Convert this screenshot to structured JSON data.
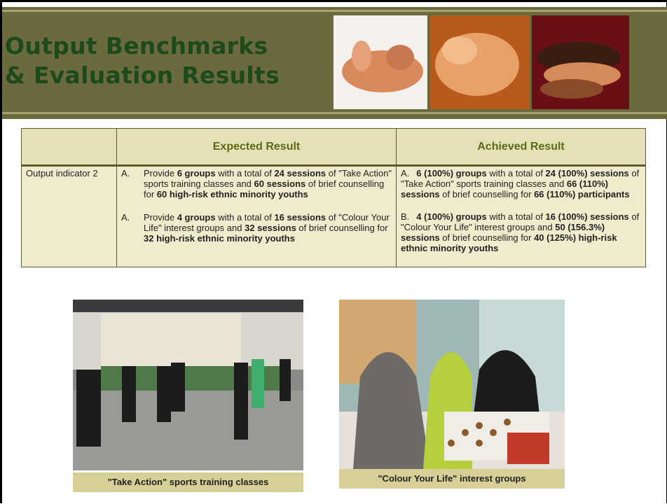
{
  "header": {
    "title_line1": "Output Benchmarks",
    "title_line2": "& Evaluation Results"
  },
  "table": {
    "headers": [
      "Expected Result",
      "Achieved Result"
    ],
    "rows": [
      {
        "label": "Output indicator 2",
        "expected": [
          {
            "marker": "A.",
            "runs": [
              {
                "t": "Provide "
              },
              {
                "t": "6 groups",
                "b": true
              },
              {
                "t": " with a total of "
              },
              {
                "t": "24 sessions",
                "b": true
              },
              {
                "t": " of \"Take Action\" sports training classes and "
              },
              {
                "t": "60 sessions",
                "b": true
              },
              {
                "t": " of brief counselling for "
              },
              {
                "t": "60 high-risk ethnic minority youths",
                "b": true
              }
            ]
          },
          {
            "marker": "A.",
            "runs": [
              {
                "t": "Provide "
              },
              {
                "t": "4 groups",
                "b": true
              },
              {
                "t": " with a total of "
              },
              {
                "t": "16 sessions",
                "b": true
              },
              {
                "t": " of \"Colour Your Life\" interest groups and "
              },
              {
                "t": "32 sessions",
                "b": true
              },
              {
                "t": " of brief counselling for "
              },
              {
                "t": "32 high-risk ethnic minority youths",
                "b": true
              }
            ]
          }
        ],
        "achieved": [
          {
            "marker": "A.",
            "runs": [
              {
                "t": "6 (100%) groups",
                "b": true
              },
              {
                "t": " with a total of "
              },
              {
                "t": "24 (100%) sessions",
                "b": true
              },
              {
                "t": " of \"Take Action\" sports training classes and "
              },
              {
                "t": "66 (110%) sessions",
                "b": true
              },
              {
                "t": " of brief counselling for "
              },
              {
                "t": "66 (110%) participants",
                "b": true
              }
            ]
          },
          {
            "marker": "B.",
            "runs": [
              {
                "t": "4 (100%) groups",
                "b": true
              },
              {
                "t": " with a total of "
              },
              {
                "t": "16 (100%) sessions",
                "b": true
              },
              {
                "t": " of \"Colour Your Life\" interest groups and "
              },
              {
                "t": "50 (156.3%) sessions",
                "b": true
              },
              {
                "t": " of brief counselling for "
              },
              {
                "t": "40 (125%) high-risk ethnic minority youths",
                "b": true
              }
            ]
          }
        ]
      }
    ]
  },
  "photos": [
    {
      "caption": "\"Take Action\" sports training classes"
    },
    {
      "caption": "\"Colour Your Life\" interest groups"
    }
  ]
}
